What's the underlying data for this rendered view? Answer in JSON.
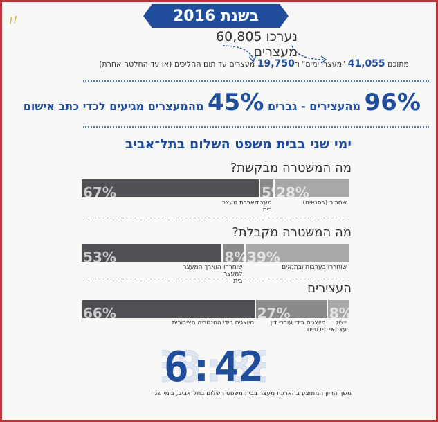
{
  "year_label": "בשנת 2016",
  "arrested_text": "נערכו 60,805 מעצרים",
  "breakdown": {
    "prefix": "מתוכם",
    "count_a": "41,055",
    "middle": "\"מעצרי ימים\" ו־",
    "count_b": "19,750",
    "suffix": "מעצרים עד תום ההליכים (או עד החלטה אחרת)"
  },
  "headline": {
    "pct_a": "96%",
    "text_a": "מהעצירים - גברים",
    "pct_b": "45%",
    "text_b": "מהמעצרים מגיעים לכדי כתב אישום"
  },
  "subtitle": "ימי שני בבית משפט השלום בתל־אביב",
  "sections": [
    {
      "question": "מה המשטרה מבקשת?",
      "segments": [
        {
          "pct": "28%",
          "value": 28,
          "label": "שחרור (בתנאים)",
          "color": "#a8a8aa"
        },
        {
          "pct": "5%",
          "value": 5,
          "label": "מעצר בית",
          "color": "#8a8a8c"
        },
        {
          "pct": "67%",
          "value": 67,
          "label": "הארכת מעצר",
          "color": "#4f5054"
        }
      ]
    },
    {
      "question": "מה המשטרה מקבלת?",
      "segments": [
        {
          "pct": "39%",
          "value": 39,
          "label": "שוחררו בערבות ובתנאים",
          "color": "#a8a8aa"
        },
        {
          "pct": "8%",
          "value": 8,
          "label": "שוחררו למעצר בית",
          "color": "#8a8a8c"
        },
        {
          "pct": "53%",
          "value": 53,
          "label": "הוארך המעצר",
          "color": "#4f5054"
        }
      ]
    },
    {
      "question": "העצירים",
      "segments": [
        {
          "pct": "8%",
          "value": 8,
          "label": "ייצוג עצמאי",
          "color": "#a8a8aa"
        },
        {
          "pct": "27%",
          "value": 27,
          "label": "מיוצגים בידי עורכי דין פרטיים",
          "color": "#8a8a8c"
        },
        {
          "pct": "66%",
          "value": 66,
          "label": "מיוצגים בידי הסנגוריה הציבורית",
          "color": "#4f5054"
        }
      ]
    }
  ],
  "clock": "6:42",
  "clock_caption": "משך הדיון הממוצע בהארכת מעצר בבית משפט השלום בתל־אביב, בימי שני",
  "colors": {
    "accent": "#1f4d9c",
    "border": "#b8333a"
  }
}
